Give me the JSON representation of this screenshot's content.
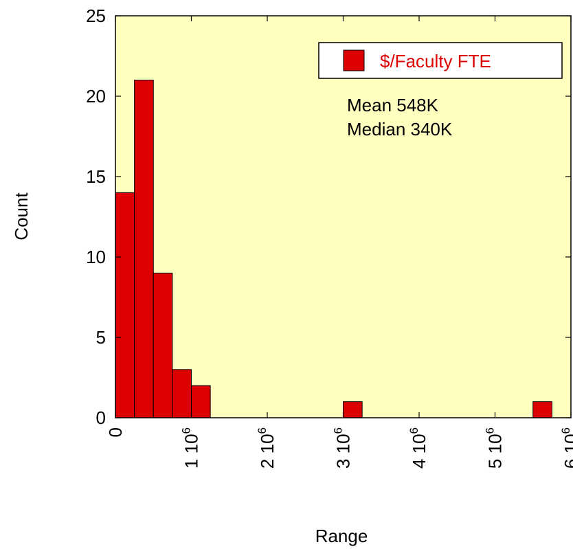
{
  "chart_data": {
    "type": "bar",
    "xlabel": "Range",
    "ylabel": "Count",
    "xlim": [
      0,
      6000000
    ],
    "ylim": [
      0,
      25
    ],
    "y_ticks": [
      0,
      5,
      10,
      15,
      20,
      25
    ],
    "x_ticks": [
      {
        "value": 0,
        "label": "0",
        "sup": ""
      },
      {
        "value": 1000000,
        "label": "1 10",
        "sup": "6"
      },
      {
        "value": 2000000,
        "label": "2 10",
        "sup": "6"
      },
      {
        "value": 3000000,
        "label": "3 10",
        "sup": "6"
      },
      {
        "value": 4000000,
        "label": "4 10",
        "sup": "6"
      },
      {
        "value": 5000000,
        "label": "5 10",
        "sup": "6"
      },
      {
        "value": 6000000,
        "label": "6 10",
        "sup": "6"
      }
    ],
    "bin_width": 250000,
    "series": [
      {
        "name": "$/Faculty FTE",
        "bins": [
          {
            "start": 0,
            "count": 14
          },
          {
            "start": 250000,
            "count": 21
          },
          {
            "start": 500000,
            "count": 9
          },
          {
            "start": 750000,
            "count": 3
          },
          {
            "start": 1000000,
            "count": 2
          },
          {
            "start": 3000000,
            "count": 1
          },
          {
            "start": 5500000,
            "count": 1
          }
        ]
      }
    ],
    "annotations": [
      "Mean 548K",
      "Median 340K"
    ],
    "legend_position": "top-right",
    "grid": false
  },
  "colors": {
    "bar_fill": "#dd0000",
    "plot_background": "#ffffc0",
    "legend_text": "#dd0000"
  }
}
